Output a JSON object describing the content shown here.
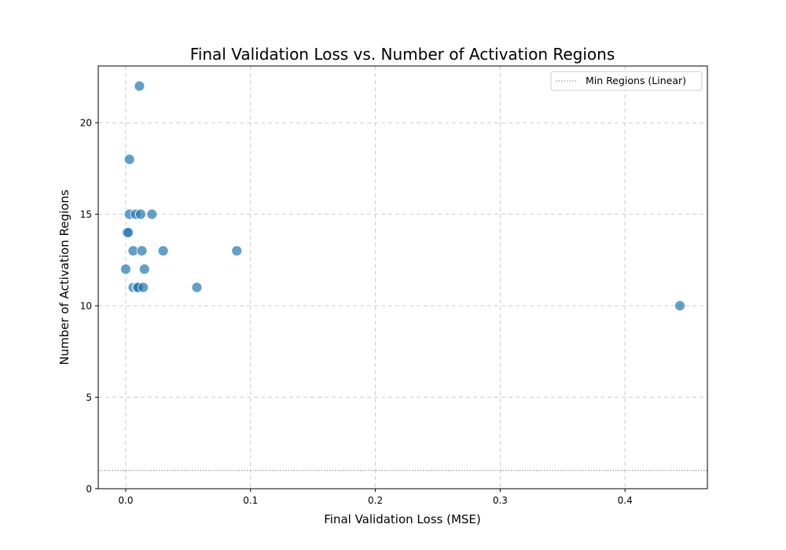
{
  "chart_data": {
    "type": "scatter",
    "title": "Final Validation Loss vs. Number of Activation Regions",
    "xlabel": "Final Validation Loss (MSE)",
    "ylabel": "Number of Activation Regions",
    "xlim": [
      -0.022,
      0.466
    ],
    "ylim": [
      0,
      23.1
    ],
    "xticks": [
      0.0,
      0.1,
      0.2,
      0.3,
      0.4
    ],
    "xtick_labels": [
      "0.0",
      "0.1",
      "0.2",
      "0.3",
      "0.4"
    ],
    "yticks": [
      0,
      5,
      10,
      15,
      20
    ],
    "ytick_labels": [
      "0",
      "5",
      "10",
      "15",
      "20"
    ],
    "grid": true,
    "legend_position": "top-right",
    "point_color": "#1f77b4",
    "point_opacity": 0.7,
    "series": [
      {
        "points": [
          {
            "x": 0.011,
            "y": 22
          },
          {
            "x": 0.003,
            "y": 18
          },
          {
            "x": 0.003,
            "y": 15
          },
          {
            "x": 0.008,
            "y": 15
          },
          {
            "x": 0.012,
            "y": 15
          },
          {
            "x": 0.021,
            "y": 15
          },
          {
            "x": 0.001,
            "y": 14
          },
          {
            "x": 0.002,
            "y": 14
          },
          {
            "x": 0.006,
            "y": 13
          },
          {
            "x": 0.013,
            "y": 13
          },
          {
            "x": 0.03,
            "y": 13
          },
          {
            "x": 0.089,
            "y": 13
          },
          {
            "x": 0.0,
            "y": 12
          },
          {
            "x": 0.015,
            "y": 12
          },
          {
            "x": 0.006,
            "y": 11
          },
          {
            "x": 0.009,
            "y": 11
          },
          {
            "x": 0.01,
            "y": 11
          },
          {
            "x": 0.014,
            "y": 11
          },
          {
            "x": 0.057,
            "y": 11
          },
          {
            "x": 0.444,
            "y": 10
          }
        ]
      }
    ],
    "reference_lines": [
      {
        "name": "Min Regions (Linear)",
        "orientation": "horizontal",
        "y": 1,
        "color": "#808080",
        "style": "dotted"
      }
    ]
  }
}
